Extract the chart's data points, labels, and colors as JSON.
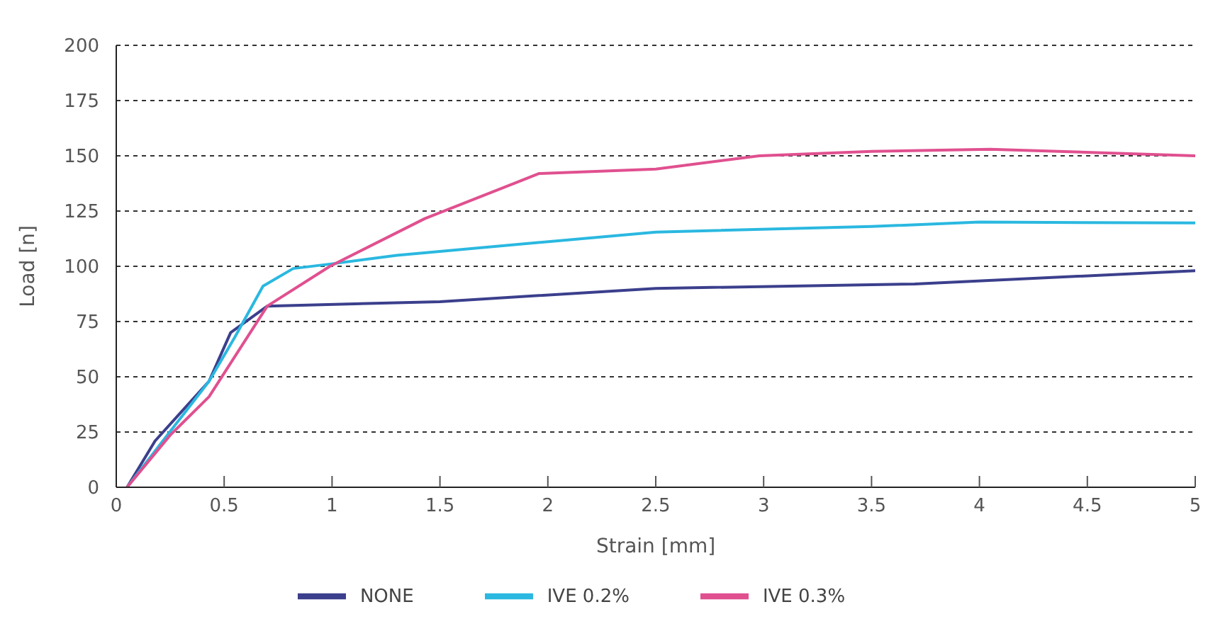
{
  "chart_data": {
    "type": "line",
    "xlabel": "Strain [mm]",
    "ylabel": "Load [n]",
    "xlim": [
      0,
      5
    ],
    "xticks": [
      0,
      0.5,
      1,
      1.5,
      2,
      2.5,
      3,
      3.5,
      4,
      4.5,
      5
    ],
    "ylim": [
      0,
      200
    ],
    "yticks": [
      0,
      25,
      50,
      75,
      100,
      125,
      150,
      175,
      200
    ],
    "grid": "y",
    "legend": "bottom",
    "marker": "none",
    "line_style": "solid",
    "series": [
      {
        "name": "NONE",
        "color": "#3b3f8c",
        "x": [
          0.05,
          0.18,
          0.43,
          0.53,
          0.7,
          1.5,
          2.5,
          3.7,
          5
        ],
        "values": [
          0,
          21,
          48,
          70,
          82,
          84,
          90,
          92,
          98
        ]
      },
      {
        "name": "IVE 0.2%",
        "color": "#2ab8e0",
        "x": [
          0.05,
          0.43,
          0.55,
          0.68,
          0.82,
          0.99,
          1.3,
          2.5,
          3.5,
          4,
          5
        ],
        "values": [
          0,
          48,
          68,
          91,
          99,
          101,
          105,
          115.5,
          118,
          120,
          119.6
        ]
      },
      {
        "name": "IVE 0.3%",
        "color": "#e0508f",
        "x": [
          0.05,
          0.25,
          0.43,
          0.7,
          0.99,
          1.43,
          1.96,
          2.5,
          2.98,
          3.5,
          4.05,
          5
        ],
        "values": [
          0,
          23.6,
          41,
          82,
          100,
          121.6,
          142,
          144,
          150,
          152,
          153,
          150
        ]
      }
    ]
  }
}
